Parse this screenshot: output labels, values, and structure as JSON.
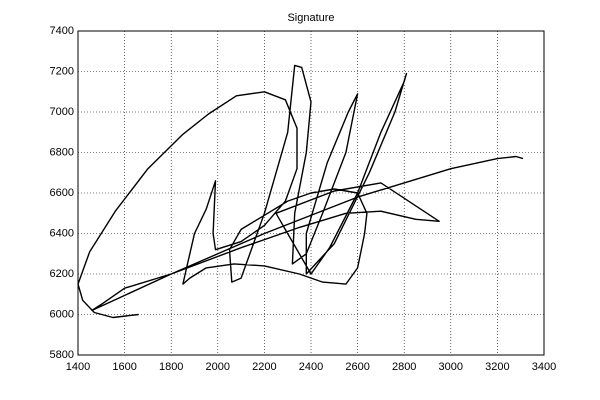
{
  "chart_data": {
    "type": "line",
    "title": "Signature",
    "color": "#000000",
    "grid": true,
    "xlim": [
      1400,
      3400
    ],
    "xticks": [
      1400,
      1600,
      1800,
      2000,
      2200,
      2400,
      2600,
      2800,
      3000,
      3200,
      3400
    ],
    "ylim": [
      5800,
      7400
    ],
    "yticks": [
      5800,
      6000,
      6200,
      6400,
      6600,
      6800,
      7000,
      7200,
      7400
    ],
    "x": [
      1660,
      1550,
      1470,
      1420,
      1400,
      1450,
      1560,
      1700,
      1850,
      1960,
      2080,
      2200,
      2290,
      2340,
      2340,
      2290,
      2200,
      2100,
      1990,
      1980,
      1990,
      1950,
      1900,
      1870,
      1850,
      1880,
      1950,
      2070,
      2200,
      2350,
      2450,
      2550,
      2600,
      2630,
      2640,
      2600,
      2500,
      2400,
      2300,
      2200,
      2100,
      2050,
      2060,
      2100,
      2200,
      2300,
      2330,
      2360,
      2400,
      2380,
      2330,
      2320,
      2380,
      2450,
      2550,
      2600,
      2560,
      2470,
      2380,
      2380,
      2500,
      2650,
      2760,
      2810,
      2800,
      2700,
      2600,
      2480,
      2400,
      2250,
      2500,
      2700,
      2950,
      2850,
      2700,
      2550,
      2350,
      2100,
      1800,
      1600,
      1500,
      1460,
      1800,
      2200,
      2600,
      3000,
      3200,
      3280,
      3310
    ],
    "values": [
      6000,
      5985,
      6010,
      6070,
      6150,
      6310,
      6510,
      6720,
      6890,
      6990,
      7080,
      7100,
      7060,
      6920,
      6720,
      6560,
      6440,
      6360,
      6320,
      6400,
      6660,
      6520,
      6400,
      6250,
      6150,
      6180,
      6230,
      6250,
      6240,
      6200,
      6160,
      6150,
      6230,
      6400,
      6500,
      6600,
      6620,
      6600,
      6560,
      6490,
      6420,
      6320,
      6160,
      6180,
      6500,
      6900,
      7230,
      7220,
      7050,
      6800,
      6500,
      6250,
      6300,
      6500,
      6800,
      7090,
      7000,
      6750,
      6400,
      6200,
      6350,
      6700,
      7000,
      7190,
      7150,
      6900,
      6600,
      6330,
      6200,
      6500,
      6610,
      6650,
      6460,
      6470,
      6510,
      6500,
      6430,
      6330,
      6200,
      6130,
      6050,
      6020,
      6200,
      6400,
      6580,
      6720,
      6770,
      6780,
      6770
    ]
  }
}
